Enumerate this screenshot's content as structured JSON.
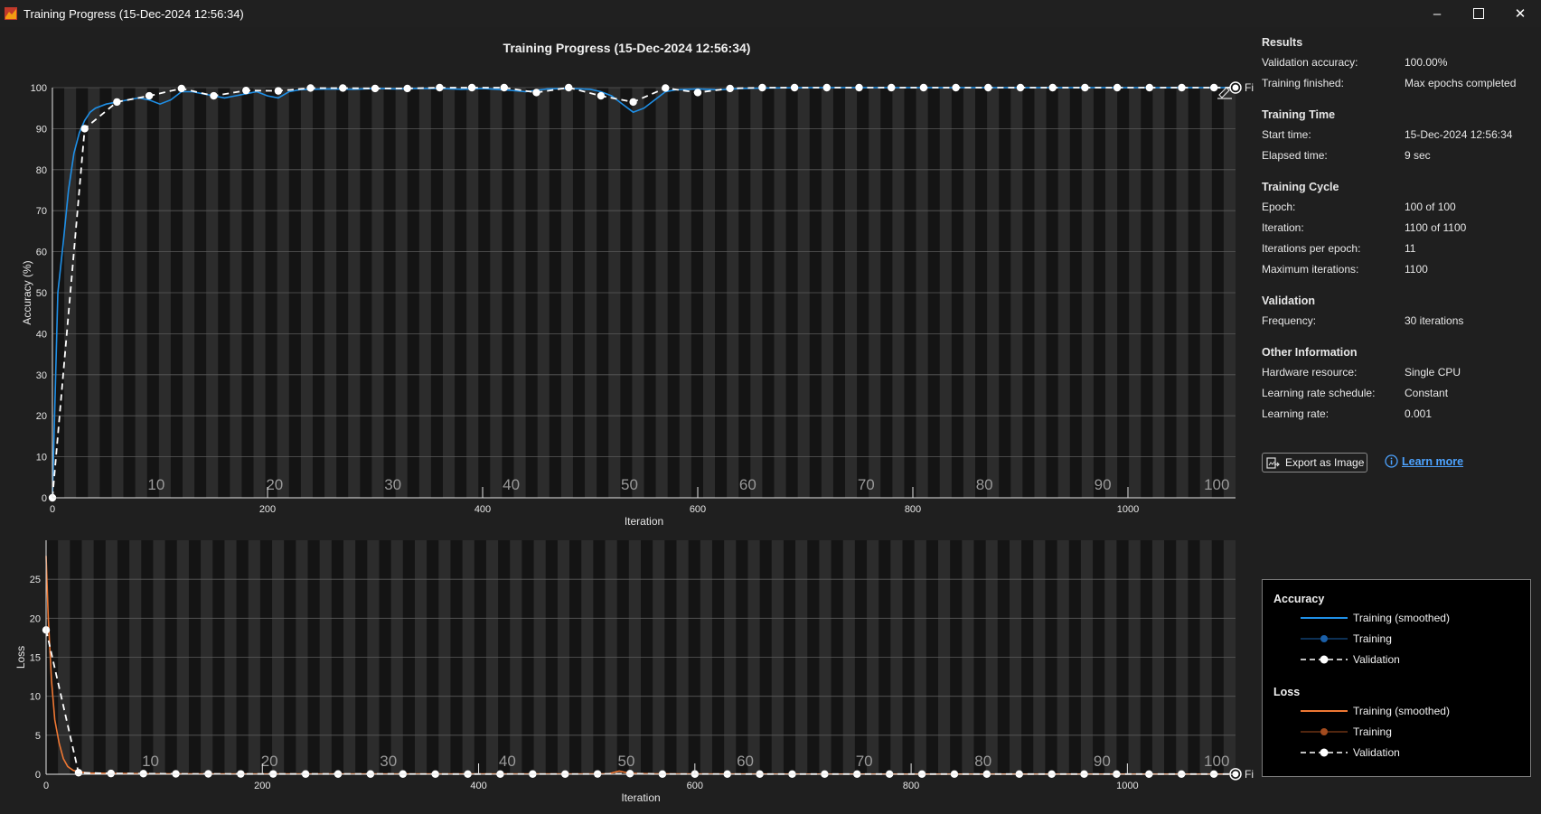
{
  "window": {
    "title": "Training Progress (15-Dec-2024 12:56:34)",
    "controls": [
      "minimize",
      "maximize",
      "close"
    ]
  },
  "figure_title": "Training Progress (15-Dec-2024 12:56:34)",
  "info": {
    "results": {
      "title": "Results",
      "rows": [
        {
          "label": "Validation accuracy:",
          "value": "100.00%"
        },
        {
          "label": "Training finished:",
          "value": "Max epochs completed"
        }
      ]
    },
    "time": {
      "title": "Training Time",
      "rows": [
        {
          "label": "Start time:",
          "value": "15-Dec-2024 12:56:34"
        },
        {
          "label": "Elapsed time:",
          "value": "9 sec"
        }
      ]
    },
    "cycle": {
      "title": "Training Cycle",
      "rows": [
        {
          "label": "Epoch:",
          "value": "100 of 100"
        },
        {
          "label": "Iteration:",
          "value": "1100 of 1100"
        },
        {
          "label": "Iterations per epoch:",
          "value": "11"
        },
        {
          "label": "Maximum iterations:",
          "value": "1100"
        }
      ]
    },
    "validation": {
      "title": "Validation",
      "rows": [
        {
          "label": "Frequency:",
          "value": "30 iterations"
        }
      ]
    },
    "other": {
      "title": "Other Information",
      "rows": [
        {
          "label": "Hardware resource:",
          "value": "Single CPU"
        },
        {
          "label": "Learning rate schedule:",
          "value": "Constant"
        },
        {
          "label": "Learning rate:",
          "value": "0.001"
        }
      ]
    }
  },
  "buttons": {
    "export": "Export as Image",
    "learn_more": "Learn more"
  },
  "legend": {
    "accuracy_title": "Accuracy",
    "loss_title": "Loss",
    "smoothed": "Training (smoothed)",
    "training": "Training",
    "validation": "Validation"
  },
  "colors": {
    "accuracy": "#1f8fe6",
    "accuracy_raw": "#1a5fa8",
    "loss": "#ee7733",
    "loss_raw": "#a24b1e",
    "validation": "#ffffff"
  },
  "chart_data": [
    {
      "type": "line",
      "xlabel": "Iteration",
      "ylabel": "Accuracy (%)",
      "xlim": [
        0,
        1100
      ],
      "ylim": [
        0,
        100
      ],
      "xticks": [
        0,
        200,
        400,
        600,
        800,
        1000
      ],
      "yticks": [
        0,
        10,
        20,
        30,
        40,
        50,
        60,
        70,
        80,
        90,
        100
      ],
      "epoch_labels": [
        10,
        20,
        30,
        40,
        50,
        60,
        70,
        80,
        90,
        100
      ],
      "iterations_per_epoch": 11,
      "final_label": "Final",
      "series": [
        {
          "name": "Training (smoothed)",
          "x": [
            0,
            5,
            10,
            15,
            20,
            25,
            30,
            35,
            40,
            50,
            60,
            70,
            80,
            90,
            100,
            110,
            120,
            130,
            140,
            150,
            160,
            170,
            180,
            190,
            200,
            210,
            220,
            230,
            240,
            260,
            280,
            300,
            320,
            340,
            360,
            380,
            400,
            420,
            440,
            460,
            480,
            500,
            510,
            520,
            530,
            540,
            550,
            560,
            570,
            580,
            600,
            620,
            640,
            660,
            700,
            800,
            900,
            1000,
            1100
          ],
          "y": [
            0,
            50,
            62,
            75,
            84,
            89,
            92,
            94,
            95,
            96,
            96.5,
            97,
            97.5,
            97,
            96,
            97,
            99,
            99,
            98.5,
            98,
            97.5,
            98,
            98.5,
            99,
            98,
            97.5,
            99,
            99.5,
            99.6,
            99.7,
            99.6,
            99.8,
            99.7,
            99.8,
            99.8,
            99.6,
            99.8,
            99.5,
            99,
            99.7,
            99.8,
            99.6,
            99,
            98,
            96,
            94,
            95,
            97,
            99,
            99.5,
            99.7,
            99.5,
            99.8,
            99.9,
            100,
            100,
            100,
            100,
            100
          ]
        },
        {
          "name": "Validation",
          "x": [
            0,
            30,
            60,
            90,
            120,
            150,
            180,
            210,
            240,
            270,
            300,
            330,
            360,
            390,
            420,
            450,
            480,
            510,
            540,
            570,
            600,
            630,
            660,
            690,
            720,
            750,
            780,
            810,
            840,
            870,
            900,
            930,
            960,
            990,
            1020,
            1050,
            1080,
            1100
          ],
          "y": [
            0,
            90,
            96.5,
            98,
            99.8,
            98,
            99.3,
            99.2,
            99.9,
            99.9,
            99.8,
            99.8,
            100,
            100,
            100,
            98.8,
            100,
            98,
            96.5,
            99.9,
            98.8,
            99.8,
            100,
            100,
            100,
            100,
            100,
            100,
            100,
            100,
            100,
            100,
            100,
            100,
            100,
            100,
            100,
            100
          ]
        }
      ]
    },
    {
      "type": "line",
      "xlabel": "Iteration",
      "ylabel": "Loss",
      "xlim": [
        0,
        1100
      ],
      "ylim": [
        0,
        30
      ],
      "xticks": [
        0,
        200,
        400,
        600,
        800,
        1000
      ],
      "yticks": [
        0,
        5,
        10,
        15,
        20,
        25
      ],
      "epoch_labels": [
        10,
        20,
        30,
        40,
        50,
        60,
        70,
        80,
        90,
        100
      ],
      "iterations_per_epoch": 11,
      "final_label": "Final",
      "series": [
        {
          "name": "Training (smoothed)",
          "x": [
            0,
            2,
            5,
            8,
            12,
            16,
            20,
            25,
            30,
            40,
            60,
            80,
            100,
            200,
            400,
            520,
            530,
            540,
            560,
            600,
            800,
            1000,
            1100
          ],
          "y": [
            28,
            20,
            12,
            7,
            4,
            2,
            1,
            0.5,
            0.3,
            0.15,
            0.1,
            0.08,
            0.05,
            0.03,
            0.03,
            0.05,
            0.4,
            0.1,
            0.05,
            0.03,
            0.02,
            0.02,
            0.02
          ]
        },
        {
          "name": "Validation",
          "x": [
            0,
            30,
            60,
            90,
            120,
            150,
            180,
            210,
            240,
            270,
            300,
            330,
            360,
            390,
            420,
            450,
            480,
            510,
            540,
            570,
            600,
            630,
            660,
            690,
            720,
            750,
            780,
            810,
            840,
            870,
            900,
            930,
            960,
            990,
            1020,
            1050,
            1080,
            1100
          ],
          "y": [
            18.5,
            0.2,
            0.1,
            0.08,
            0.05,
            0.05,
            0.04,
            0.04,
            0.03,
            0.03,
            0.03,
            0.03,
            0.02,
            0.02,
            0.02,
            0.03,
            0.02,
            0.04,
            0.08,
            0.02,
            0.03,
            0.02,
            0.02,
            0.02,
            0.02,
            0.02,
            0.02,
            0.02,
            0.02,
            0.02,
            0.02,
            0.02,
            0.02,
            0.02,
            0.02,
            0.02,
            0.02,
            0.02
          ]
        }
      ]
    }
  ]
}
